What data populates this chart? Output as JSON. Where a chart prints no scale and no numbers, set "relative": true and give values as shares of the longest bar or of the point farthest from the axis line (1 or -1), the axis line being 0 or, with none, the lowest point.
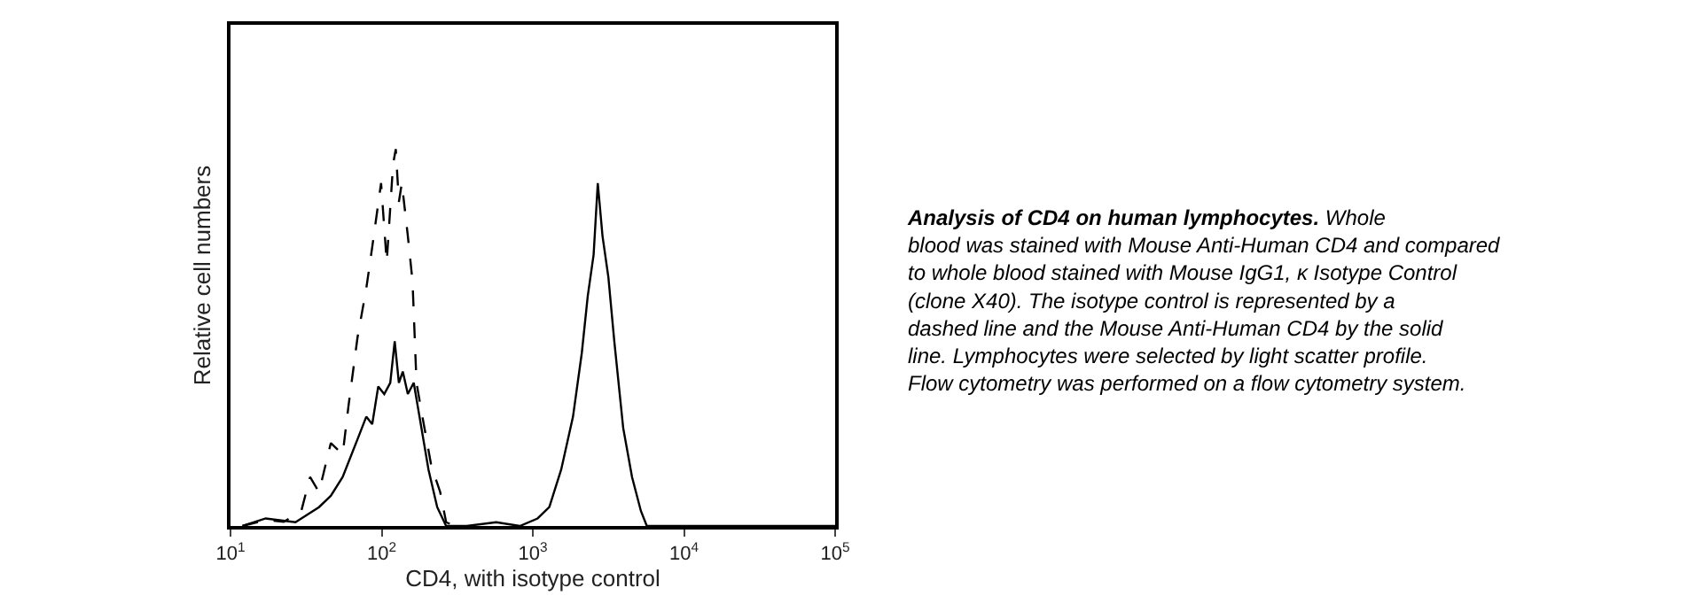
{
  "chart_data": {
    "type": "line",
    "relative": true,
    "log": "x",
    "tick_labels": "x",
    "marker": "none",
    "title": "Analysis of CD4 on human lymphocytes.",
    "annotations": [
      "Whole blood was stained with Mouse Anti-Human CD4 and compared to whole blood stained with Mouse IgG1, κ Isotype Control (clone X40). The isotype control is represented by a dashed line and the Mouse Anti-Human CD4 by the solid line. Lymphocytes were selected by light scatter profile. Flow cytometry was performed on a flow cytometry system."
    ],
    "xlabel": "CD4, with isotype control",
    "ylabel": "Relative cell numbers",
    "xlim": [
      10,
      100000
    ],
    "xticks": [
      {
        "value": 10,
        "label": "10$^{1}$"
      },
      {
        "value": 100,
        "label": "10$^{2}$"
      },
      {
        "value": 1000,
        "label": "10$^{3}$"
      },
      {
        "value": 10000,
        "label": "10$^{4}$"
      },
      {
        "value": 100000,
        "label": "10$^{5}$"
      }
    ],
    "series": [
      {
        "color": "#000000",
        "line_style": "dashed",
        "x": [
          12.0,
          17.1,
          22.5,
          29.4,
          33.6,
          38.5,
          46.1,
          55.2,
          60.4,
          69.2,
          79.1,
          86.6,
          99.1,
          108,
          119,
          124,
          130,
          136,
          149,
          160,
          170,
          186,
          213,
          244,
          267,
          305
        ],
        "values": [
          0,
          0.016,
          0.011,
          0.04,
          0.13,
          0.09,
          0.22,
          0.19,
          0.32,
          0.5,
          0.63,
          0.74,
          0.91,
          0.7,
          0.96,
          1.0,
          0.86,
          0.91,
          0.77,
          0.65,
          0.38,
          0.29,
          0.16,
          0.09,
          0.01,
          0
        ]
      },
      {
        "color": "#000000",
        "line_style": "solid",
        "x": [
          12.0,
          17.1,
          26.9,
          38.5,
          46.1,
          55.2,
          69.2,
          79.1,
          86.6,
          94.9,
          104,
          114,
          122,
          130,
          138,
          149,
          163,
          178,
          204,
          233,
          267,
          365,
          573,
          821,
          1075,
          1286,
          1541,
          1844,
          2110,
          2309,
          2525,
          2690,
          2890,
          3162,
          3459,
          3963,
          4533,
          5188,
          5677,
          11140,
          100000
        ],
        "values": [
          0,
          0.02,
          0.01,
          0.05,
          0.08,
          0.13,
          0.23,
          0.29,
          0.27,
          0.37,
          0.35,
          0.38,
          0.49,
          0.38,
          0.41,
          0.35,
          0.38,
          0.29,
          0.15,
          0.05,
          0,
          0,
          0.01,
          0,
          0.02,
          0.05,
          0.15,
          0.29,
          0.46,
          0.61,
          0.72,
          0.91,
          0.77,
          0.66,
          0.49,
          0.26,
          0.13,
          0.04,
          0,
          0,
          0
        ]
      }
    ]
  }
}
